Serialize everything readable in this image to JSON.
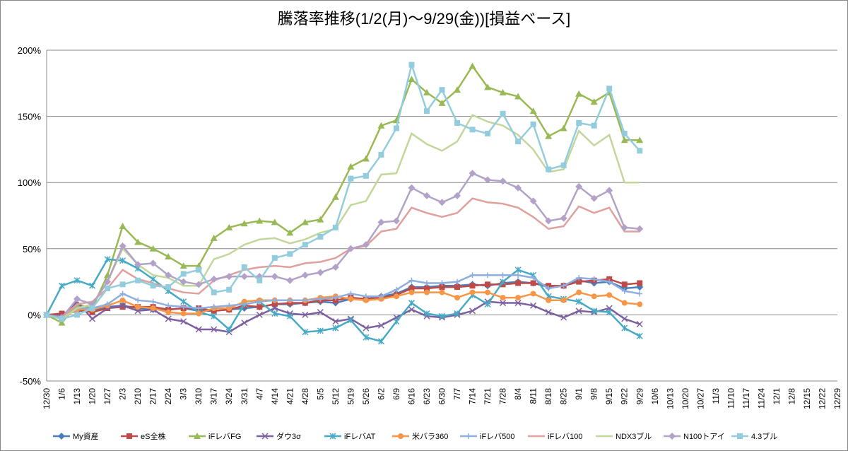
{
  "chart_data": {
    "type": "line",
    "title": "騰落率推移(1/2(月)～9/29(金))[損益ベース]",
    "categories": [
      "12/30",
      "1/6",
      "1/13",
      "1/20",
      "1/27",
      "2/3",
      "2/10",
      "2/17",
      "2/24",
      "3/3",
      "3/10",
      "3/17",
      "3/24",
      "3/31",
      "4/7",
      "4/14",
      "4/21",
      "4/28",
      "5/5",
      "5/12",
      "5/19",
      "5/26",
      "6/2",
      "6/9",
      "6/16",
      "6/23",
      "6/30",
      "7/7",
      "7/14",
      "7/21",
      "7/28",
      "8/4",
      "8/11",
      "8/18",
      "8/25",
      "9/1",
      "9/8",
      "9/15",
      "9/22",
      "9/29",
      "10/6",
      "10/13",
      "10/20",
      "10/27",
      "11/3",
      "11/10",
      "11/17",
      "11/24",
      "12/1",
      "12/8",
      "12/15",
      "12/22",
      "12/29"
    ],
    "ylim": [
      -50,
      200
    ],
    "yticks": [
      {
        "value": -50,
        "label": "-50%"
      },
      {
        "value": 0,
        "label": "0%"
      },
      {
        "value": 50,
        "label": "50%"
      },
      {
        "value": 100,
        "label": "100%"
      },
      {
        "value": 150,
        "label": "150%"
      },
      {
        "value": 200,
        "label": "200%"
      }
    ],
    "grid": true,
    "legend": "bottom",
    "series": [
      {
        "name": "My資産",
        "color": "#4a7ebb",
        "marker": "diamond",
        "values": [
          0,
          0,
          3,
          3,
          6,
          7,
          5,
          4,
          4,
          5,
          3,
          3,
          4,
          5,
          6,
          8,
          8,
          9,
          10,
          9,
          12,
          12,
          14,
          16,
          21,
          21,
          22,
          22,
          23,
          22,
          24,
          25,
          24,
          21,
          22,
          26,
          24,
          25,
          20,
          21,
          null,
          null,
          null,
          null,
          null,
          null,
          null,
          null,
          null,
          null,
          null,
          null,
          null
        ]
      },
      {
        "name": "eS全株",
        "color": "#be4b48",
        "marker": "square",
        "values": [
          0,
          1,
          4,
          2,
          5,
          6,
          6,
          6,
          4,
          5,
          5,
          3,
          4,
          7,
          6,
          8,
          9,
          9,
          11,
          11,
          13,
          12,
          13,
          15,
          20,
          20,
          21,
          21,
          22,
          23,
          23,
          24,
          24,
          22,
          22,
          25,
          26,
          27,
          23,
          24,
          null,
          null,
          null,
          null,
          null,
          null,
          null,
          null,
          null,
          null,
          null,
          null,
          null
        ]
      },
      {
        "name": "iFレバFG",
        "color": "#98b954",
        "marker": "triangle",
        "values": [
          0,
          -6,
          8,
          5,
          30,
          67,
          55,
          50,
          44,
          37,
          37,
          58,
          66,
          69,
          71,
          70,
          62,
          70,
          72,
          89,
          112,
          118,
          143,
          147,
          178,
          168,
          160,
          170,
          188,
          172,
          168,
          165,
          154,
          135,
          141,
          167,
          161,
          168,
          132,
          132,
          null,
          null,
          null,
          null,
          null,
          null,
          null,
          null,
          null,
          null,
          null,
          null,
          null
        ]
      },
      {
        "name": "ダウ3σ",
        "color": "#7d60a0",
        "marker": "x",
        "values": [
          0,
          -2,
          10,
          -3,
          5,
          7,
          3,
          4,
          -3,
          -5,
          -11,
          -11,
          -13,
          -6,
          0,
          5,
          1,
          0,
          2,
          -5,
          -3,
          -10,
          -8,
          -2,
          4,
          -1,
          -2,
          0,
          3,
          10,
          9,
          9,
          7,
          2,
          -2,
          3,
          2,
          5,
          -3,
          -7,
          null,
          null,
          null,
          null,
          null,
          null,
          null,
          null,
          null,
          null,
          null,
          null,
          null
        ]
      },
      {
        "name": "iFレバAT",
        "color": "#46aac5",
        "marker": "asterisk",
        "values": [
          0,
          22,
          26,
          22,
          42,
          41,
          35,
          27,
          18,
          10,
          2,
          -1,
          -11,
          8,
          10,
          1,
          -1,
          -13,
          -12,
          -10,
          -4,
          -17,
          -20,
          -5,
          9,
          1,
          -1,
          1,
          15,
          8,
          25,
          34,
          30,
          14,
          12,
          10,
          3,
          2,
          -10,
          -16,
          null,
          null,
          null,
          null,
          null,
          null,
          null,
          null,
          null,
          null,
          null,
          null,
          null
        ]
      },
      {
        "name": "米バラ360",
        "color": "#f79646",
        "marker": "circle",
        "values": [
          0,
          -2,
          4,
          4,
          7,
          11,
          6,
          5,
          2,
          1,
          1,
          5,
          5,
          10,
          11,
          11,
          11,
          11,
          13,
          14,
          12,
          11,
          12,
          14,
          17,
          17,
          17,
          13,
          17,
          17,
          13,
          13,
          16,
          11,
          11,
          17,
          14,
          15,
          9,
          8,
          null,
          null,
          null,
          null,
          null,
          null,
          null,
          null,
          null,
          null,
          null,
          null,
          null
        ]
      },
      {
        "name": "iFレバ500",
        "color": "#8eaee0",
        "marker": "plus",
        "values": [
          0,
          -3,
          5,
          5,
          8,
          16,
          11,
          10,
          7,
          6,
          5,
          6,
          7,
          8,
          10,
          11,
          11,
          11,
          12,
          13,
          16,
          14,
          14,
          19,
          26,
          24,
          24,
          25,
          30,
          30,
          30,
          30,
          28,
          20,
          22,
          28,
          27,
          25,
          18,
          16,
          null,
          null,
          null,
          null,
          null,
          null,
          null,
          null,
          null,
          null,
          null,
          null,
          null
        ]
      },
      {
        "name": "iFレバ100",
        "color": "#e0a09e",
        "marker": "none",
        "values": [
          0,
          -2,
          8,
          10,
          20,
          34,
          27,
          24,
          20,
          17,
          16,
          26,
          30,
          34,
          36,
          37,
          36,
          39,
          40,
          43,
          50,
          52,
          63,
          65,
          81,
          77,
          74,
          77,
          88,
          85,
          84,
          81,
          74,
          65,
          67,
          82,
          77,
          81,
          63,
          63,
          null,
          null,
          null,
          null,
          null,
          null,
          null,
          null,
          null,
          null,
          null,
          null,
          null
        ]
      },
      {
        "name": "NDX3ブル",
        "color": "#c3d69b",
        "marker": "none",
        "values": [
          0,
          -3,
          5,
          8,
          25,
          50,
          38,
          30,
          28,
          22,
          22,
          42,
          46,
          53,
          57,
          58,
          54,
          57,
          62,
          65,
          83,
          86,
          106,
          107,
          137,
          129,
          124,
          131,
          151,
          146,
          143,
          136,
          125,
          108,
          110,
          139,
          128,
          136,
          100,
          100,
          null,
          null,
          null,
          null,
          null,
          null,
          null,
          null,
          null,
          null,
          null,
          null,
          null
        ]
      },
      {
        "name": "N100トアイ",
        "color": "#b3a2c7",
        "marker": "diamond",
        "values": [
          0,
          -2,
          12,
          8,
          25,
          52,
          38,
          39,
          30,
          25,
          23,
          27,
          29,
          29,
          29,
          29,
          26,
          30,
          32,
          36,
          50,
          53,
          70,
          71,
          96,
          90,
          85,
          90,
          107,
          102,
          101,
          96,
          86,
          71,
          73,
          97,
          88,
          94,
          66,
          65,
          null,
          null,
          null,
          null,
          null,
          null,
          null,
          null,
          null,
          null,
          null,
          null,
          null
        ]
      },
      {
        "name": "4.3ブル",
        "color": "#93cddd",
        "marker": "square",
        "values": [
          0,
          -3,
          0,
          5,
          20,
          23,
          26,
          22,
          21,
          31,
          34,
          17,
          19,
          36,
          26,
          43,
          46,
          53,
          59,
          66,
          103,
          105,
          121,
          141,
          189,
          154,
          170,
          145,
          140,
          137,
          152,
          131,
          144,
          110,
          113,
          145,
          143,
          171,
          137,
          124,
          null,
          null,
          null,
          null,
          null,
          null,
          null,
          null,
          null,
          null,
          null,
          null,
          null
        ]
      }
    ]
  }
}
